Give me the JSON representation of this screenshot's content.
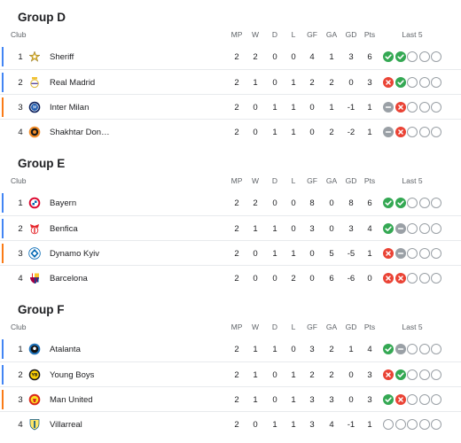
{
  "columns": {
    "club": "Club",
    "mp": "MP",
    "w": "W",
    "d": "D",
    "l": "L",
    "gf": "GF",
    "ga": "GA",
    "gd": "GD",
    "pts": "Pts",
    "last5": "Last 5"
  },
  "colors": {
    "ucl": "#4285f4",
    "uel": "#fa7b17",
    "win": "#34a853",
    "loss": "#ea4335",
    "draw": "#9aa0a6"
  },
  "groups": [
    {
      "title": "Group D",
      "rows": [
        {
          "pos": "1",
          "club": "Sheriff",
          "logo_icon": "sheriff-star-icon",
          "mp": "2",
          "w": "2",
          "d": "0",
          "l": "0",
          "gf": "4",
          "ga": "1",
          "gd": "3",
          "pts": "6",
          "last5": [
            "W",
            "W",
            "",
            "",
            ""
          ],
          "qual": "ucl"
        },
        {
          "pos": "2",
          "club": "Real Madrid",
          "logo_icon": "real-madrid-crest-icon",
          "mp": "2",
          "w": "1",
          "d": "0",
          "l": "1",
          "gf": "2",
          "ga": "2",
          "gd": "0",
          "pts": "3",
          "last5": [
            "L",
            "W",
            "",
            "",
            ""
          ],
          "qual": "ucl"
        },
        {
          "pos": "3",
          "club": "Inter Milan",
          "logo_icon": "inter-milan-crest-icon",
          "mp": "2",
          "w": "0",
          "d": "1",
          "l": "1",
          "gf": "0",
          "ga": "1",
          "gd": "-1",
          "pts": "1",
          "last5": [
            "D",
            "L",
            "",
            "",
            ""
          ],
          "qual": "uel"
        },
        {
          "pos": "4",
          "club": "Shakhtar Don…",
          "logo_icon": "shakhtar-crest-icon",
          "mp": "2",
          "w": "0",
          "d": "1",
          "l": "1",
          "gf": "0",
          "ga": "2",
          "gd": "-2",
          "pts": "1",
          "last5": [
            "D",
            "L",
            "",
            "",
            ""
          ],
          "qual": ""
        }
      ]
    },
    {
      "title": "Group E",
      "rows": [
        {
          "pos": "1",
          "club": "Bayern",
          "logo_icon": "bayern-crest-icon",
          "mp": "2",
          "w": "2",
          "d": "0",
          "l": "0",
          "gf": "8",
          "ga": "0",
          "gd": "8",
          "pts": "6",
          "last5": [
            "W",
            "W",
            "",
            "",
            ""
          ],
          "qual": "ucl"
        },
        {
          "pos": "2",
          "club": "Benfica",
          "logo_icon": "benfica-crest-icon",
          "mp": "2",
          "w": "1",
          "d": "1",
          "l": "0",
          "gf": "3",
          "ga": "0",
          "gd": "3",
          "pts": "4",
          "last5": [
            "W",
            "D",
            "",
            "",
            ""
          ],
          "qual": "ucl"
        },
        {
          "pos": "3",
          "club": "Dynamo Kyiv",
          "logo_icon": "dynamo-kyiv-crest-icon",
          "mp": "2",
          "w": "0",
          "d": "1",
          "l": "1",
          "gf": "0",
          "ga": "5",
          "gd": "-5",
          "pts": "1",
          "last5": [
            "L",
            "D",
            "",
            "",
            ""
          ],
          "qual": "uel"
        },
        {
          "pos": "4",
          "club": "Barcelona",
          "logo_icon": "barcelona-crest-icon",
          "mp": "2",
          "w": "0",
          "d": "0",
          "l": "2",
          "gf": "0",
          "ga": "6",
          "gd": "-6",
          "pts": "0",
          "last5": [
            "L",
            "L",
            "",
            "",
            ""
          ],
          "qual": ""
        }
      ]
    },
    {
      "title": "Group F",
      "rows": [
        {
          "pos": "1",
          "club": "Atalanta",
          "logo_icon": "atalanta-crest-icon",
          "mp": "2",
          "w": "1",
          "d": "1",
          "l": "0",
          "gf": "3",
          "ga": "2",
          "gd": "1",
          "pts": "4",
          "last5": [
            "W",
            "D",
            "",
            "",
            ""
          ],
          "qual": "ucl"
        },
        {
          "pos": "2",
          "club": "Young Boys",
          "logo_icon": "young-boys-crest-icon",
          "mp": "2",
          "w": "1",
          "d": "0",
          "l": "1",
          "gf": "2",
          "ga": "2",
          "gd": "0",
          "pts": "3",
          "last5": [
            "L",
            "W",
            "",
            "",
            ""
          ],
          "qual": "ucl"
        },
        {
          "pos": "3",
          "club": "Man United",
          "logo_icon": "man-united-crest-icon",
          "mp": "2",
          "w": "1",
          "d": "0",
          "l": "1",
          "gf": "3",
          "ga": "3",
          "gd": "0",
          "pts": "3",
          "last5": [
            "W",
            "L",
            "",
            "",
            ""
          ],
          "qual": "uel"
        },
        {
          "pos": "4",
          "club": "Villarreal",
          "logo_icon": "villarreal-crest-icon",
          "mp": "2",
          "w": "0",
          "d": "1",
          "l": "1",
          "gf": "3",
          "ga": "4",
          "gd": "-1",
          "pts": "1",
          "last5": [
            "",
            "",
            "",
            "",
            ""
          ],
          "qual": ""
        }
      ]
    }
  ]
}
